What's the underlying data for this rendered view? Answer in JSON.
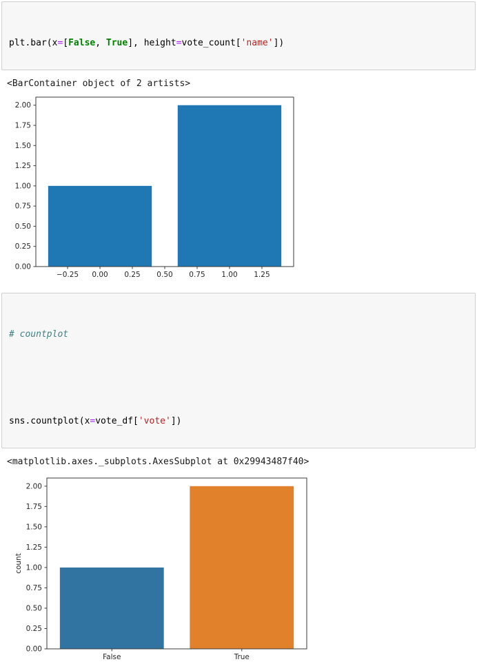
{
  "notebook": {
    "cell1": {
      "tokens": [
        {
          "text": "plt.bar(x"
        },
        {
          "text": "="
        },
        {
          "text": "["
        },
        {
          "text": "False"
        },
        {
          "text": ", "
        },
        {
          "text": "True"
        },
        {
          "text": "], height"
        },
        {
          "text": "="
        },
        {
          "text": "vote_count["
        },
        {
          "text": "'name'"
        },
        {
          "text": "])"
        }
      ],
      "output_text": "<BarContainer object of 2 artists>"
    },
    "cell2": {
      "comment": "# countplot",
      "tokens": [
        {
          "text": "sns.countplot(x"
        },
        {
          "text": "="
        },
        {
          "text": "vote_df["
        },
        {
          "text": "'vote'"
        },
        {
          "text": "])"
        }
      ],
      "output_text": "<matplotlib.axes._subplots.AxesSubplot at 0x29943487f40>"
    }
  },
  "chart_data": [
    {
      "type": "bar",
      "title": "",
      "xlabel": "",
      "ylabel": "",
      "grid": false,
      "legend": null,
      "x": [
        0,
        1
      ],
      "values": [
        1,
        2
      ],
      "bar_width": 0.8,
      "bar_colors": [
        "#1f77b4",
        "#1f77b4"
      ],
      "xlim": [
        -0.495,
        1.495
      ],
      "ylim": [
        0,
        2.1
      ],
      "xticks": [
        -0.25,
        0.0,
        0.25,
        0.5,
        0.75,
        1.0,
        1.25
      ],
      "xtick_labels": [
        "−0.25",
        "0.00",
        "0.25",
        "0.50",
        "0.75",
        "1.00",
        "1.25"
      ],
      "yticks": [
        0,
        0.25,
        0.5,
        0.75,
        1.0,
        1.25,
        1.5,
        1.75,
        2.0
      ],
      "ytick_labels": [
        "0.00",
        "0.25",
        "0.50",
        "0.75",
        "1.00",
        "1.25",
        "1.50",
        "1.75",
        "2.00"
      ]
    },
    {
      "type": "bar",
      "title": "",
      "xlabel": "",
      "ylabel": "count",
      "grid": false,
      "legend": null,
      "categories": [
        "False",
        "True"
      ],
      "x": [
        0,
        1
      ],
      "values": [
        1,
        2
      ],
      "bar_width": 0.8,
      "bar_colors": [
        "#3274a1",
        "#e1812c"
      ],
      "xlim": [
        -0.5,
        1.5
      ],
      "ylim": [
        0,
        2.1
      ],
      "xticks": [
        0,
        1
      ],
      "xtick_labels": [
        "False",
        "True"
      ],
      "yticks": [
        0,
        0.25,
        0.5,
        0.75,
        1.0,
        1.25,
        1.5,
        1.75,
        2.0
      ],
      "ytick_labels": [
        "0.00",
        "0.25",
        "0.50",
        "0.75",
        "1.00",
        "1.25",
        "1.50",
        "1.75",
        "2.00"
      ]
    }
  ]
}
